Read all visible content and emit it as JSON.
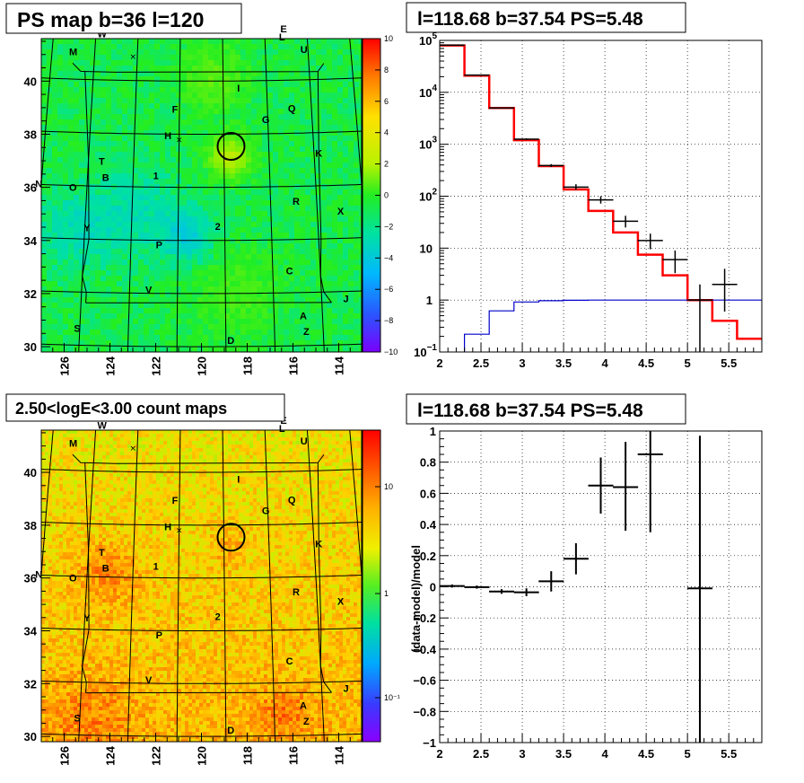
{
  "panels": {
    "p1": {
      "title": "PS map b=36 l=120"
    },
    "p2": {
      "title": "l=118.68 b=37.54 PS=5.48"
    },
    "p3": {
      "title": "2.50<logE<3.00 count maps"
    },
    "p4": {
      "title": "l=118.68 b=37.54 PS=5.48"
    }
  },
  "map": {
    "xticks": [
      "126",
      "124",
      "122",
      "120",
      "118",
      "116",
      "114"
    ],
    "yticks": [
      "40",
      "38",
      "36",
      "34",
      "32",
      "30"
    ],
    "labels": [
      {
        "t": "W",
        "l": 124.7,
        "b": 41.6
      },
      {
        "t": "E",
        "l": 116.1,
        "b": 41.8
      },
      {
        "t": "L",
        "l": 116.2,
        "b": 41.5
      },
      {
        "t": "U",
        "l": 115.2,
        "b": 41.0
      },
      {
        "t": "M",
        "l": 126.0,
        "b": 40.9
      },
      {
        "t": "I",
        "l": 118.3,
        "b": 39.6
      },
      {
        "t": "F",
        "l": 121.2,
        "b": 38.8
      },
      {
        "t": "G",
        "l": 117.1,
        "b": 38.4
      },
      {
        "t": "Q",
        "l": 115.9,
        "b": 38.8
      },
      {
        "t": "H",
        "l": 121.5,
        "b": 37.8
      },
      {
        "t": "K",
        "l": 114.8,
        "b": 37.1
      },
      {
        "t": "T",
        "l": 124.4,
        "b": 36.8
      },
      {
        "t": "B",
        "l": 124.2,
        "b": 36.2
      },
      {
        "t": "1",
        "l": 122.0,
        "b": 36.3
      },
      {
        "t": "N",
        "l": 127.1,
        "b": 35.9
      },
      {
        "t": "O",
        "l": 125.6,
        "b": 35.8
      },
      {
        "t": "R",
        "l": 115.9,
        "b": 35.3
      },
      {
        "t": "X",
        "l": 114.0,
        "b": 34.9
      },
      {
        "t": "Y",
        "l": 124.9,
        "b": 34.3
      },
      {
        "t": "2",
        "l": 119.3,
        "b": 34.4
      },
      {
        "t": "P",
        "l": 121.8,
        "b": 33.7
      },
      {
        "t": "C",
        "l": 116.3,
        "b": 32.7
      },
      {
        "t": "V",
        "l": 122.2,
        "b": 32.0
      },
      {
        "t": "J",
        "l": 114.0,
        "b": 31.6
      },
      {
        "t": "A",
        "l": 115.8,
        "b": 31.0
      },
      {
        "t": "S",
        "l": 125.1,
        "b": 30.5
      },
      {
        "t": "Z",
        "l": 115.7,
        "b": 30.4
      },
      {
        "t": "D",
        "l": 118.8,
        "b": 30.1
      }
    ],
    "crosses": [
      {
        "l": 123.2,
        "b": 40.9
      },
      {
        "l": 121.0,
        "b": 37.8
      }
    ],
    "ps_circle": {
      "l": 118.68,
      "b": 37.54
    }
  },
  "colorbars": {
    "ps": [
      "10",
      "8",
      "6",
      "4",
      "2",
      "0",
      "−2",
      "−4",
      "−6",
      "−8",
      "−10"
    ],
    "counts": [
      "10",
      "1",
      "10⁻¹"
    ]
  },
  "chart_data": [
    {
      "type": "map",
      "panel": "p1",
      "title": "PS map b=36 l=120",
      "xlim": [
        127.0,
        113.0
      ],
      "ylim": [
        29.8,
        41.6
      ],
      "zlim": [
        -10,
        10
      ]
    },
    {
      "type": "line",
      "panel": "p2",
      "title": "l=118.68 b=37.54 PS=5.48",
      "y_scale": "log",
      "xlim": [
        2.0,
        5.9
      ],
      "ylim": [
        0.1,
        100000
      ],
      "xticks": [
        "2",
        "2.5",
        "3",
        "3.5",
        "4",
        "4.5",
        "5",
        "5.5"
      ],
      "yticks": [
        {
          "v": 100000,
          "base": "10",
          "exp": "5"
        },
        {
          "v": 10000,
          "base": "10",
          "exp": "4"
        },
        {
          "v": 1000,
          "base": "10",
          "exp": "3"
        },
        {
          "v": 100,
          "base": "10",
          "exp": "2"
        },
        {
          "v": 10,
          "base": "10",
          "exp": ""
        },
        {
          "v": 1,
          "base": "1",
          "exp": ""
        },
        {
          "v": 0.1,
          "base": "10",
          "exp": "−1"
        }
      ],
      "bin_edges": [
        2.0,
        2.3,
        2.6,
        2.9,
        3.2,
        3.5,
        3.8,
        4.1,
        4.4,
        4.7,
        5.0,
        5.3,
        5.6,
        5.9
      ],
      "series": [
        {
          "color": "#ff0000",
          "style": "step",
          "values": [
            80000,
            21000,
            5000,
            1200,
            380,
            135,
            52,
            20,
            7.5,
            3.0,
            1.0,
            0.4,
            0.18
          ]
        },
        {
          "color": "#0000cc",
          "style": "step",
          "values": [
            0.08,
            0.22,
            0.62,
            0.92,
            0.97,
            0.99,
            1.0,
            1.0,
            1.0,
            1.0,
            1.0,
            1.0,
            1.0
          ]
        },
        {
          "color": "#000000",
          "style": "points",
          "points": [
            {
              "x": 2.15,
              "y": 81000,
              "lo": 79000,
              "hi": 83000
            },
            {
              "x": 2.45,
              "y": 21500,
              "lo": 21000,
              "hi": 22000
            },
            {
              "x": 2.75,
              "y": 5000,
              "lo": 4900,
              "hi": 5100
            },
            {
              "x": 3.05,
              "y": 1250,
              "lo": 1200,
              "hi": 1300
            },
            {
              "x": 3.35,
              "y": 390,
              "lo": 365,
              "hi": 415
            },
            {
              "x": 3.65,
              "y": 150,
              "lo": 133,
              "hi": 170
            },
            {
              "x": 3.95,
              "y": 85,
              "lo": 72,
              "hi": 100
            },
            {
              "x": 4.25,
              "y": 33,
              "lo": 25,
              "hi": 42
            },
            {
              "x": 4.55,
              "y": 14,
              "lo": 9.5,
              "hi": 19
            },
            {
              "x": 4.85,
              "y": 6,
              "lo": 3.3,
              "hi": 9
            },
            {
              "x": 5.15,
              "y": 1,
              "lo": 0.1,
              "hi": 2
            },
            {
              "x": 5.45,
              "y": 2,
              "lo": 0.6,
              "hi": 4
            }
          ]
        }
      ]
    },
    {
      "type": "map",
      "panel": "p3",
      "title": "2.50<logE<3.00 count maps",
      "xlim": [
        127.0,
        113.0
      ],
      "ylim": [
        29.8,
        41.6
      ],
      "z_scale": "log"
    },
    {
      "type": "scatter",
      "panel": "p4",
      "title": "l=118.68 b=37.54 PS=5.48",
      "ylabel": "(data-model)/model",
      "xlim": [
        2.0,
        5.9
      ],
      "ylim": [
        -1,
        1
      ],
      "xticks": [
        "2",
        "2.5",
        "3",
        "3.5",
        "4",
        "4.5",
        "5",
        "5.5"
      ],
      "yticks": [
        "1",
        "0.8",
        "0.6",
        "0.4",
        "0.2",
        "0",
        "−0.2",
        "−0.4",
        "−0.6",
        "−0.8",
        "−1"
      ],
      "points": [
        {
          "x": 2.15,
          "y": 0.005,
          "lo": -0.005,
          "hi": 0.015
        },
        {
          "x": 2.45,
          "y": -0.002,
          "lo": -0.012,
          "hi": 0.008
        },
        {
          "x": 2.75,
          "y": -0.03,
          "lo": -0.045,
          "hi": -0.015
        },
        {
          "x": 3.05,
          "y": -0.035,
          "lo": -0.06,
          "hi": -0.01
        },
        {
          "x": 3.35,
          "y": 0.035,
          "lo": -0.03,
          "hi": 0.1
        },
        {
          "x": 3.65,
          "y": 0.18,
          "lo": 0.08,
          "hi": 0.28
        },
        {
          "x": 3.95,
          "y": 0.65,
          "lo": 0.47,
          "hi": 0.83
        },
        {
          "x": 4.25,
          "y": 0.64,
          "lo": 0.36,
          "hi": 0.93
        },
        {
          "x": 4.55,
          "y": 0.85,
          "lo": 0.35,
          "hi": 1.0
        },
        {
          "x": 5.15,
          "y": -0.01,
          "lo": -1.0,
          "hi": 0.97
        }
      ]
    }
  ]
}
